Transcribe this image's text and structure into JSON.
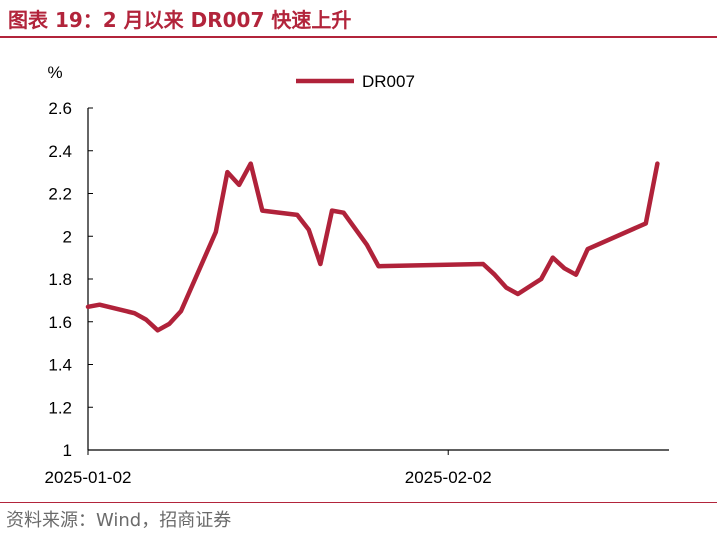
{
  "header": {
    "title": "图表 19：2 月以来 DR007 快速上升"
  },
  "footer": {
    "source": "资料来源：Wind，招商证券"
  },
  "colors": {
    "accent": "#b2243b",
    "series": "#b0223a"
  },
  "chart_data": {
    "type": "line",
    "title": "",
    "xlabel": "",
    "ylabel": "%",
    "ylim": [
      1,
      2.6
    ],
    "yticks": [
      1,
      1.2,
      1.4,
      1.6,
      1.8,
      2,
      2.2,
      2.4,
      2.6
    ],
    "ytick_labels": [
      "1",
      "1.2",
      "1.4",
      "1.6",
      "1.8",
      "2",
      "2.2",
      "2.4",
      "2.6"
    ],
    "xlim": [
      "2025-01-02",
      "2025-02-21"
    ],
    "xtick_labels": [
      {
        "label": "2025-01-02",
        "date": "2025-01-02"
      },
      {
        "label": "2025-02-02",
        "date": "2025-02-02"
      }
    ],
    "grid": false,
    "legend": {
      "position": "top-center",
      "entries": [
        "DR007"
      ]
    },
    "series": [
      {
        "name": "DR007",
        "points": [
          {
            "x": "2025-01-02",
            "y": 1.67
          },
          {
            "x": "2025-01-03",
            "y": 1.68
          },
          {
            "x": "2025-01-06",
            "y": 1.64
          },
          {
            "x": "2025-01-07",
            "y": 1.61
          },
          {
            "x": "2025-01-08",
            "y": 1.56
          },
          {
            "x": "2025-01-09",
            "y": 1.59
          },
          {
            "x": "2025-01-10",
            "y": 1.65
          },
          {
            "x": "2025-01-13",
            "y": 2.02
          },
          {
            "x": "2025-01-14",
            "y": 2.3
          },
          {
            "x": "2025-01-15",
            "y": 2.24
          },
          {
            "x": "2025-01-16",
            "y": 2.34
          },
          {
            "x": "2025-01-17",
            "y": 2.12
          },
          {
            "x": "2025-01-20",
            "y": 2.1
          },
          {
            "x": "2025-01-21",
            "y": 2.03
          },
          {
            "x": "2025-01-22",
            "y": 1.87
          },
          {
            "x": "2025-01-23",
            "y": 2.12
          },
          {
            "x": "2025-01-24",
            "y": 2.11
          },
          {
            "x": "2025-01-26",
            "y": 1.96
          },
          {
            "x": "2025-01-27",
            "y": 1.86
          },
          {
            "x": "2025-02-05",
            "y": 1.87
          },
          {
            "x": "2025-02-06",
            "y": 1.82
          },
          {
            "x": "2025-02-07",
            "y": 1.76
          },
          {
            "x": "2025-02-08",
            "y": 1.73
          },
          {
            "x": "2025-02-10",
            "y": 1.8
          },
          {
            "x": "2025-02-11",
            "y": 1.9
          },
          {
            "x": "2025-02-12",
            "y": 1.85
          },
          {
            "x": "2025-02-13",
            "y": 1.82
          },
          {
            "x": "2025-02-14",
            "y": 1.94
          },
          {
            "x": "2025-02-19",
            "y": 2.06
          },
          {
            "x": "2025-02-20",
            "y": 2.34
          }
        ]
      }
    ]
  }
}
